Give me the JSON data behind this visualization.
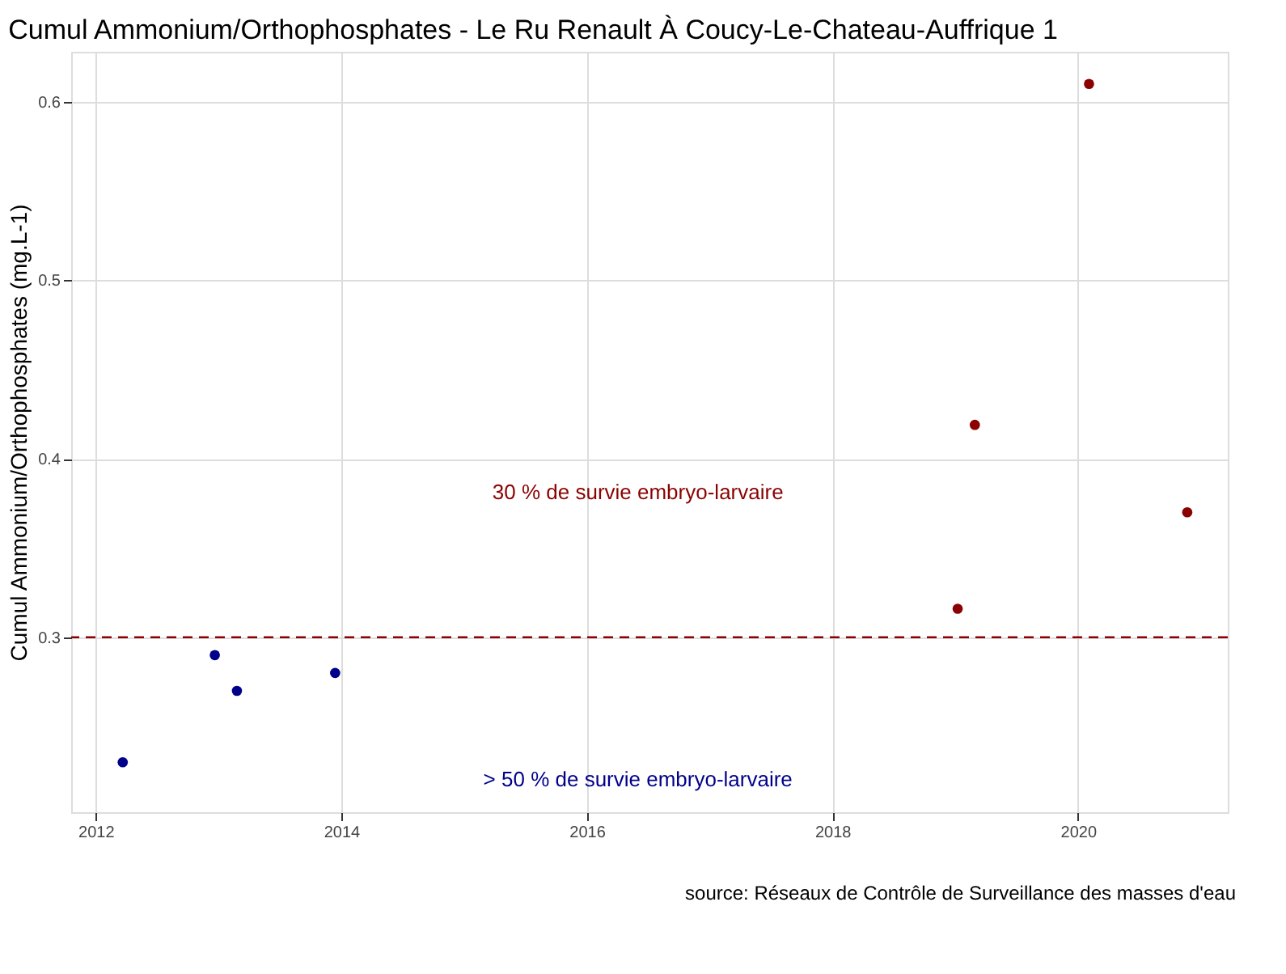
{
  "chart_data": {
    "type": "scatter",
    "title": "Cumul Ammonium/Orthophosphates - Le Ru Renault À Coucy-Le-Chateau-Auffrique 1",
    "ylabel": "Cumul Ammonium/Orthophosphates (mg.L-1)",
    "series": [
      {
        "color": "#00008b",
        "x": [
          2012.22,
          2012.97,
          2013.15,
          2013.95
        ],
        "values": [
          0.23,
          0.29,
          0.27,
          0.28
        ]
      },
      {
        "color": "#8b0000",
        "x": [
          2019.02,
          2019.16,
          2020.09,
          2020.89
        ],
        "values": [
          0.316,
          0.419,
          0.61,
          0.37
        ]
      }
    ],
    "xlim": [
      2011.8,
      2021.22
    ],
    "xticks": [
      2012,
      2014,
      2016,
      2018,
      2020
    ],
    "ylim": [
      0.202,
      0.628
    ],
    "yticks": [
      0.3,
      0.4,
      0.5,
      0.6
    ],
    "ref_lines": [
      {
        "axis": "y",
        "value": 0.3,
        "color": "#8b0000",
        "line_style": "dashed"
      }
    ],
    "annotations": [
      "30 % de survie embryo-larvaire",
      "> 50 % de survie embryo-larvaire",
      "source: Réseaux de Contrôle de Surveillance des masses d'eau"
    ],
    "grid": true,
    "marker": "circle"
  }
}
